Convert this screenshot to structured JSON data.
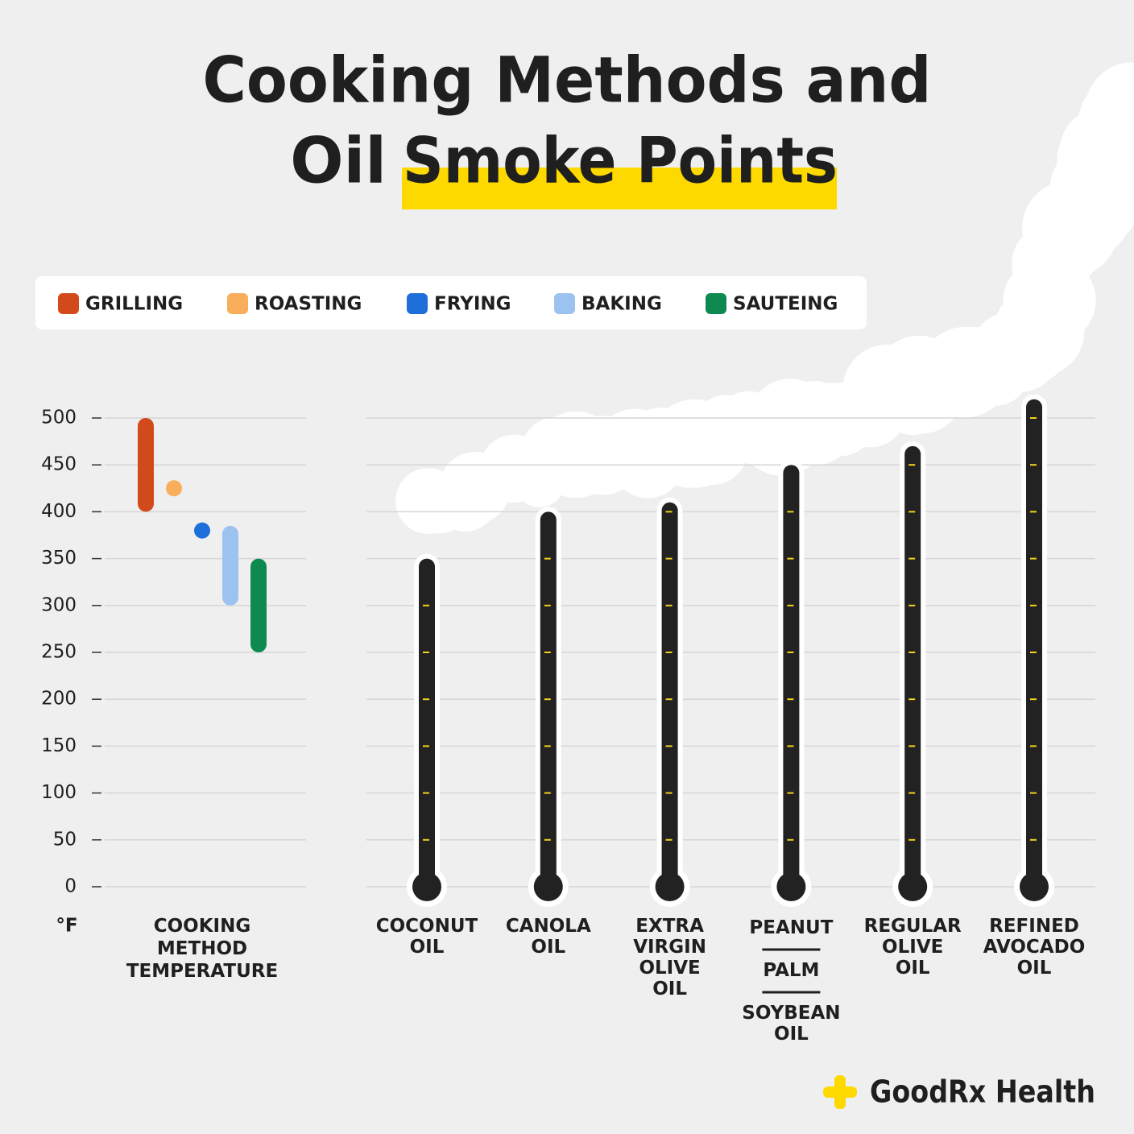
{
  "title": {
    "line1": "Cooking Methods and",
    "line2": "Oil",
    "highlight": "Smoke Points"
  },
  "brand": "GoodRx Health",
  "chart_data": [
    {
      "type": "range",
      "y_unit": "°F",
      "xlabel": "COOKING METHOD TEMPERATURE",
      "ylim": [
        0,
        500
      ],
      "yticks": [
        0,
        50,
        100,
        150,
        200,
        250,
        300,
        350,
        400,
        450,
        500
      ],
      "grid": true,
      "series": [
        {
          "name": "GRILLING",
          "color": "#d24a1c",
          "values": [
            400,
            500
          ]
        },
        {
          "name": "ROASTING",
          "color": "#f9ae5b",
          "values": [
            425
          ]
        },
        {
          "name": "FRYING",
          "color": "#1f6fdb",
          "values": [
            380
          ]
        },
        {
          "name": "BAKING",
          "color": "#9cc3ef",
          "values": [
            300,
            385
          ]
        },
        {
          "name": "SAUTEING",
          "color": "#0e8a51",
          "values": [
            250,
            350
          ]
        }
      ]
    },
    {
      "type": "thermometer",
      "color": "#222222",
      "tick_color": "#f2d21b",
      "categories": [
        "COCONUT OIL",
        "CANOLA OIL",
        "EXTRA VIRGIN OLIVE OIL",
        [
          "PEANUT",
          "PALM",
          "SOYBEAN OIL"
        ],
        "REGULAR OLIVE OIL",
        "REFINED AVOCADO OIL"
      ],
      "values": [
        350,
        400,
        410,
        450,
        470,
        520
      ],
      "ylim": [
        0,
        500
      ],
      "yticks": [
        0,
        50,
        100,
        150,
        200,
        250,
        300,
        350,
        400,
        450,
        500
      ],
      "grid": true
    }
  ]
}
